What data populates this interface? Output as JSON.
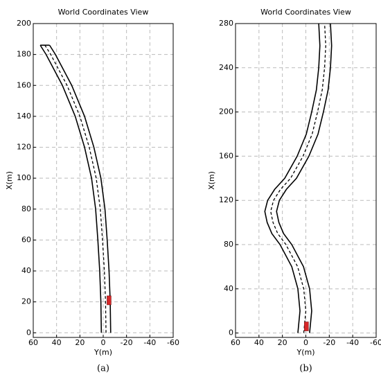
{
  "chart_data": [
    {
      "type": "line",
      "title": "World Coordinates View",
      "xlabel": "Y(m)",
      "ylabel": "X(m)",
      "caption": "(a)",
      "xlim": [
        60,
        -60
      ],
      "xticks": [
        60,
        40,
        20,
        0,
        -20,
        -40,
        -60
      ],
      "ylim": [
        -3,
        200
      ],
      "yticks": [
        0,
        20,
        40,
        60,
        80,
        100,
        120,
        140,
        160,
        180,
        200
      ],
      "grid": true,
      "series": [
        {
          "color": "#000000",
          "dashed": false,
          "x": [
            1.6,
            2,
            3,
            4.6,
            6.5,
            10,
            16,
            24,
            35,
            49,
            54
          ],
          "values": [
            0,
            20,
            40,
            60,
            80,
            100,
            120,
            140,
            160,
            180,
            186
          ]
        },
        {
          "color": "#000000",
          "dashed": true,
          "x": [
            -2.4,
            -2,
            -1,
            0.6,
            2.5,
            6,
            12,
            20,
            31,
            45,
            50
          ],
          "values": [
            0,
            20,
            40,
            60,
            80,
            100,
            120,
            140,
            160,
            180,
            186
          ]
        },
        {
          "color": "#000000",
          "dashed": false,
          "x": [
            -6.4,
            -6,
            -5,
            -3.4,
            -1.5,
            2,
            8,
            16,
            27,
            41,
            46
          ],
          "values": [
            0,
            20,
            40,
            60,
            80,
            100,
            120,
            140,
            160,
            180,
            186
          ]
        }
      ],
      "vehicle": {
        "x": -5,
        "y": 21,
        "color": "#d62728"
      }
    },
    {
      "type": "line",
      "title": "World Coordinates View",
      "xlabel": "Y(m)",
      "ylabel": "X(m)",
      "caption": "(b)",
      "xlim": [
        60,
        -60
      ],
      "xticks": [
        60,
        40,
        20,
        0,
        -20,
        -40,
        -60
      ],
      "ylim": [
        -4,
        280
      ],
      "yticks": [
        0,
        40,
        80,
        120,
        160,
        200,
        240,
        280
      ],
      "grid": true,
      "series": [
        {
          "color": "#000000",
          "dashed": false,
          "x": [
            6.8,
            5,
            6.8,
            12,
            22,
            29,
            33,
            35,
            32.6,
            26.6,
            18,
            7.4,
            -0.4,
            -5,
            -9,
            -11,
            -12,
            -11
          ],
          "values": [
            0,
            20,
            40,
            60,
            80,
            90,
            100,
            110,
            120,
            130,
            140,
            160,
            180,
            200,
            220,
            240,
            260,
            280
          ]
        },
        {
          "color": "#000000",
          "dashed": true,
          "x": [
            1.8,
            0,
            1.8,
            7,
            17,
            24,
            28,
            30,
            27.6,
            21.6,
            13,
            2.4,
            -5.4,
            -10,
            -14,
            -16,
            -17,
            -16
          ],
          "values": [
            0,
            20,
            40,
            60,
            80,
            90,
            100,
            110,
            120,
            130,
            140,
            160,
            180,
            200,
            220,
            240,
            260,
            280
          ]
        },
        {
          "color": "#000000",
          "dashed": false,
          "x": [
            -3.2,
            -5,
            -3.2,
            2,
            12,
            19,
            23,
            25,
            22.6,
            16.6,
            8,
            -2.6,
            -10.4,
            -15,
            -19,
            -21,
            -22,
            -21
          ],
          "values": [
            0,
            20,
            40,
            60,
            80,
            90,
            100,
            110,
            120,
            130,
            140,
            160,
            180,
            200,
            220,
            240,
            260,
            280
          ]
        }
      ],
      "vehicle": {
        "x": -0.5,
        "y": 6,
        "color": "#d62728"
      }
    }
  ]
}
